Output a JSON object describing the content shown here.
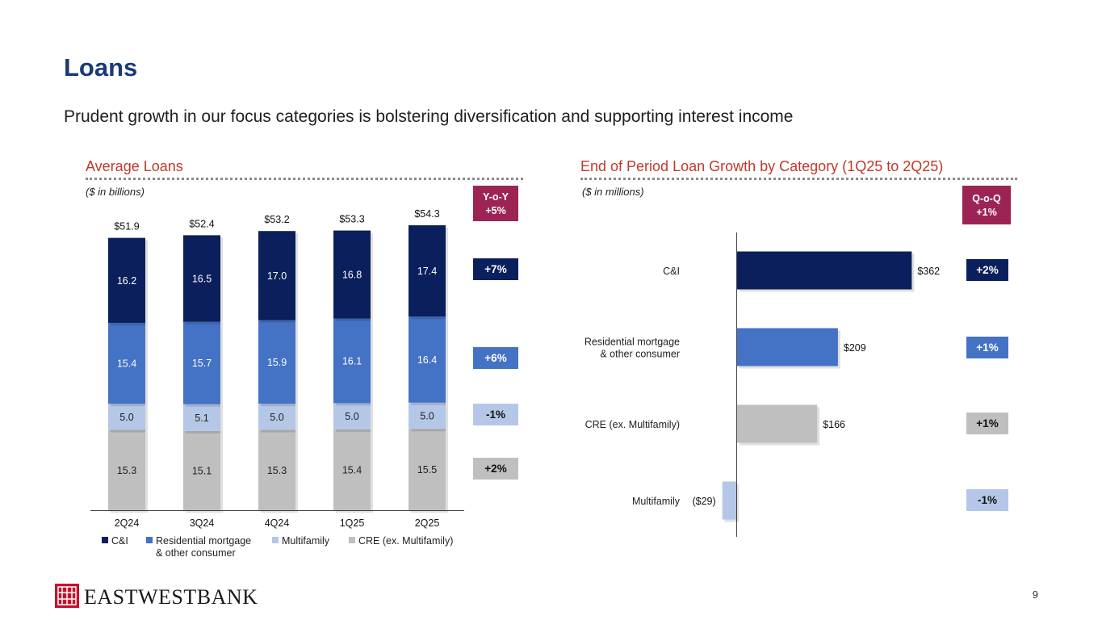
{
  "title": "Loans",
  "subtitle": "Prudent growth in our focus categories is bolstering diversification and supporting interest income",
  "left": {
    "section_title": "Average Loans",
    "units": "($ in billions)",
    "header_badge": {
      "line1": "Y-o-Y",
      "line2": "+5%"
    },
    "change_badges": [
      "+7%",
      "+6%",
      "-1%",
      "+2%"
    ]
  },
  "right": {
    "section_title": "End of Period Loan Growth by Category (1Q25 to 2Q25)",
    "units": "($ in millions)",
    "header_badge": {
      "line1": "Q-o-Q",
      "line2": "+1%"
    },
    "change_badges": [
      "+2%",
      "+1%",
      "+1%",
      "-1%"
    ]
  },
  "legend": {
    "ci": "C&I",
    "res_line1": "Residential mortgage",
    "res_line2": "& other consumer",
    "mf": "Multifamily",
    "cre": "CRE (ex. Multifamily)"
  },
  "page_number": "9",
  "logo_text": "EASTWESTBANK",
  "colors": {
    "ci": "#0b1f5c",
    "residential": "#4472c4",
    "multifamily": "#b4c7e7",
    "cre": "#bfbfbf",
    "badge_header": "#9c2454"
  },
  "chart_data": [
    {
      "type": "bar",
      "stacked": true,
      "title": "Average Loans",
      "ylabel": "($ in billions)",
      "categories": [
        "2Q24",
        "3Q24",
        "4Q24",
        "1Q25",
        "2Q25"
      ],
      "totals": [
        "$51.9",
        "$52.4",
        "$53.2",
        "$53.3",
        "$54.3"
      ],
      "series": [
        {
          "name": "CRE (ex. Multifamily)",
          "values": [
            15.3,
            15.1,
            15.3,
            15.4,
            15.5
          ]
        },
        {
          "name": "Multifamily",
          "values": [
            5.0,
            5.1,
            5.0,
            5.0,
            5.0
          ]
        },
        {
          "name": "Residential mortgage & other consumer",
          "values": [
            15.4,
            15.7,
            15.9,
            16.1,
            16.4
          ]
        },
        {
          "name": "C&I",
          "values": [
            16.2,
            16.5,
            17.0,
            16.8,
            17.4
          ]
        }
      ]
    },
    {
      "type": "bar",
      "orientation": "horizontal",
      "title": "End of Period Loan Growth by Category (1Q25 to 2Q25)",
      "ylabel": "($ in millions)",
      "categories": [
        "C&I",
        "Residential mortgage & other consumer",
        "CRE (ex. Multifamily)",
        "Multifamily"
      ],
      "category_lines": [
        [
          "C&I"
        ],
        [
          "Residential mortgage",
          "& other consumer"
        ],
        [
          "CRE (ex. Multifamily)"
        ],
        [
          "Multifamily"
        ]
      ],
      "values": [
        362,
        209,
        166,
        -29
      ],
      "value_labels": [
        "$362",
        "$209",
        "$166",
        "($29)"
      ]
    }
  ]
}
